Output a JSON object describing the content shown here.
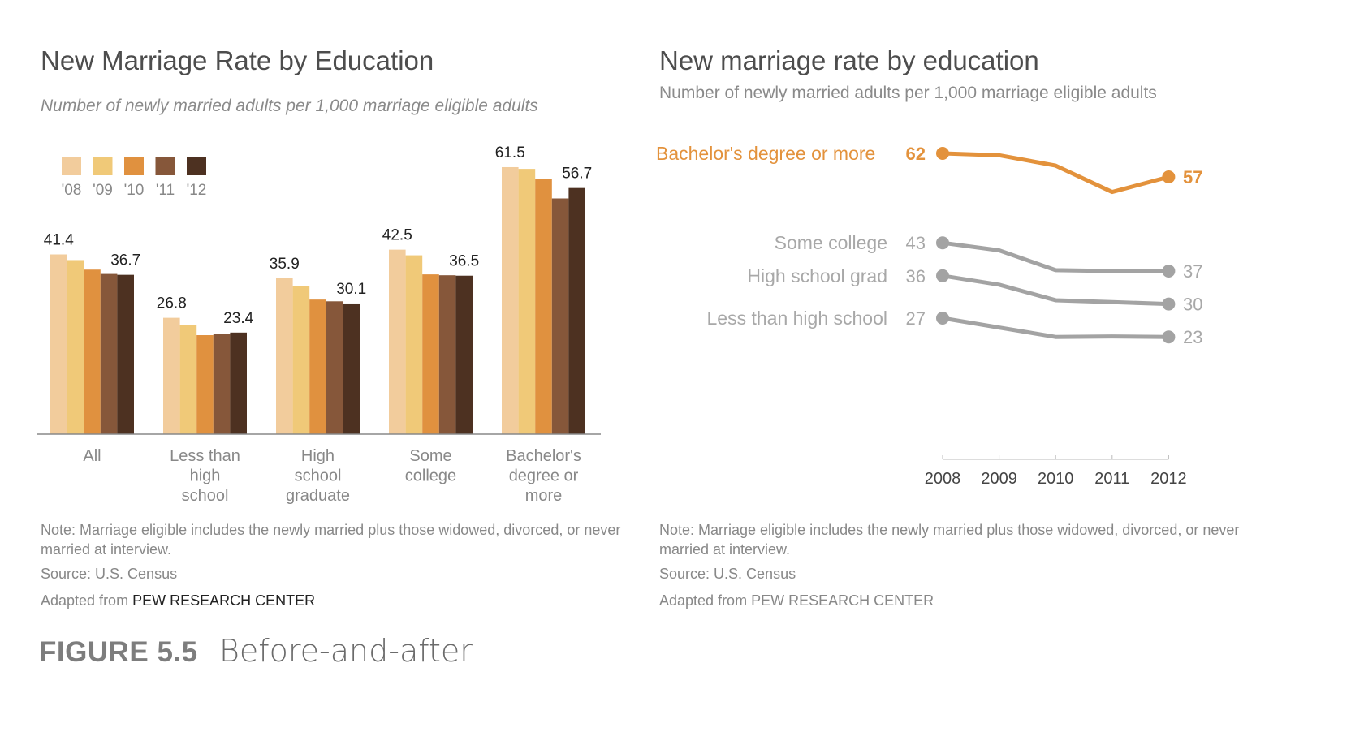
{
  "left_panel": {
    "title": "New Marriage Rate by Education",
    "subtitle": "Number of newly married adults per 1,000 marriage eligible adults",
    "note": "Note: Marriage eligible includes the newly married plus those widowed, divorced, or never married at interview.",
    "source": "Source: U.S. Census",
    "credit_prefix": "Adapted from ",
    "credit_name": "PEW RESEARCH CENTER"
  },
  "right_panel": {
    "title": "New marriage rate by education",
    "subtitle": "Number of newly married adults per 1,000 marriage eligible adults",
    "note": "Note: Marriage eligible includes the newly married plus those widowed, divorced, or never married at interview.",
    "source": "Source: U.S. Census",
    "credit": "Adapted from PEW RESEARCH CENTER"
  },
  "figure": {
    "label": "FIGURE 5.5",
    "caption": "Before-and-after"
  },
  "colors": {
    "y08": "#f2cc9c",
    "y09": "#f0c978",
    "y10": "#e0913f",
    "y11": "#86573a",
    "y12": "#4d3121",
    "highlight": "#e3923c",
    "muted_line": "#a3a3a3",
    "muted_text": "#a8a8a8"
  },
  "chart_data": [
    {
      "type": "bar",
      "title": "New Marriage Rate by Education",
      "subtitle": "Number of newly married adults per 1,000 marriage eligible adults",
      "categories": [
        [
          "All"
        ],
        [
          "Less than",
          "high",
          "school"
        ],
        [
          "High",
          "school",
          "graduate"
        ],
        [
          "Some",
          "college"
        ],
        [
          "Bachelor's",
          "degree or",
          "more"
        ]
      ],
      "series": [
        {
          "name": "'08",
          "values": [
            41.4,
            26.8,
            35.9,
            42.5,
            61.5
          ]
        },
        {
          "name": "'09",
          "values": [
            40.1,
            25.1,
            34.2,
            41.2,
            61.1
          ]
        },
        {
          "name": "'10",
          "values": [
            37.9,
            22.8,
            31.0,
            36.8,
            58.7
          ]
        },
        {
          "name": "'11",
          "values": [
            36.9,
            23.0,
            30.6,
            36.6,
            54.3
          ]
        },
        {
          "name": "'12",
          "values": [
            36.7,
            23.4,
            30.1,
            36.5,
            56.7
          ]
        }
      ],
      "data_labels": [
        {
          "category": 0,
          "series": 0,
          "text": "41.4"
        },
        {
          "category": 0,
          "series": 4,
          "text": "36.7"
        },
        {
          "category": 1,
          "series": 0,
          "text": "26.8"
        },
        {
          "category": 1,
          "series": 4,
          "text": "23.4"
        },
        {
          "category": 2,
          "series": 0,
          "text": "35.9"
        },
        {
          "category": 2,
          "series": 4,
          "text": "30.1"
        },
        {
          "category": 3,
          "series": 0,
          "text": "42.5"
        },
        {
          "category": 3,
          "series": 4,
          "text": "36.5"
        },
        {
          "category": 4,
          "series": 0,
          "text": "61.5"
        },
        {
          "category": 4,
          "series": 4,
          "text": "56.7"
        }
      ],
      "ylim": [
        0,
        65
      ],
      "legend": "top-left",
      "grid": false
    },
    {
      "type": "line",
      "title": "New marriage rate by education",
      "subtitle": "Number of newly married adults per 1,000 marriage eligible adults",
      "x": [
        2008,
        2009,
        2010,
        2011,
        2012
      ],
      "x_ticks": [
        "2008",
        "2009",
        "2010",
        "2011",
        "2012"
      ],
      "series": [
        {
          "name": "Bachelor's degree or more",
          "values": [
            62,
            61.6,
            59.4,
            53.8,
            57
          ],
          "start_label": "62",
          "end_label": "57",
          "highlight": true
        },
        {
          "name": "Some college",
          "values": [
            43,
            41.4,
            37.2,
            37.0,
            37
          ],
          "start_label": "43",
          "end_label": "37",
          "highlight": false
        },
        {
          "name": "High school grad",
          "values": [
            36,
            34.1,
            30.8,
            30.4,
            30
          ],
          "start_label": "36",
          "end_label": "30",
          "highlight": false
        },
        {
          "name": "Less than high school",
          "values": [
            27,
            25.0,
            23.0,
            23.1,
            23
          ],
          "start_label": "27",
          "end_label": "23",
          "highlight": false
        }
      ],
      "ylim": [
        10,
        70
      ],
      "grid": false
    }
  ]
}
